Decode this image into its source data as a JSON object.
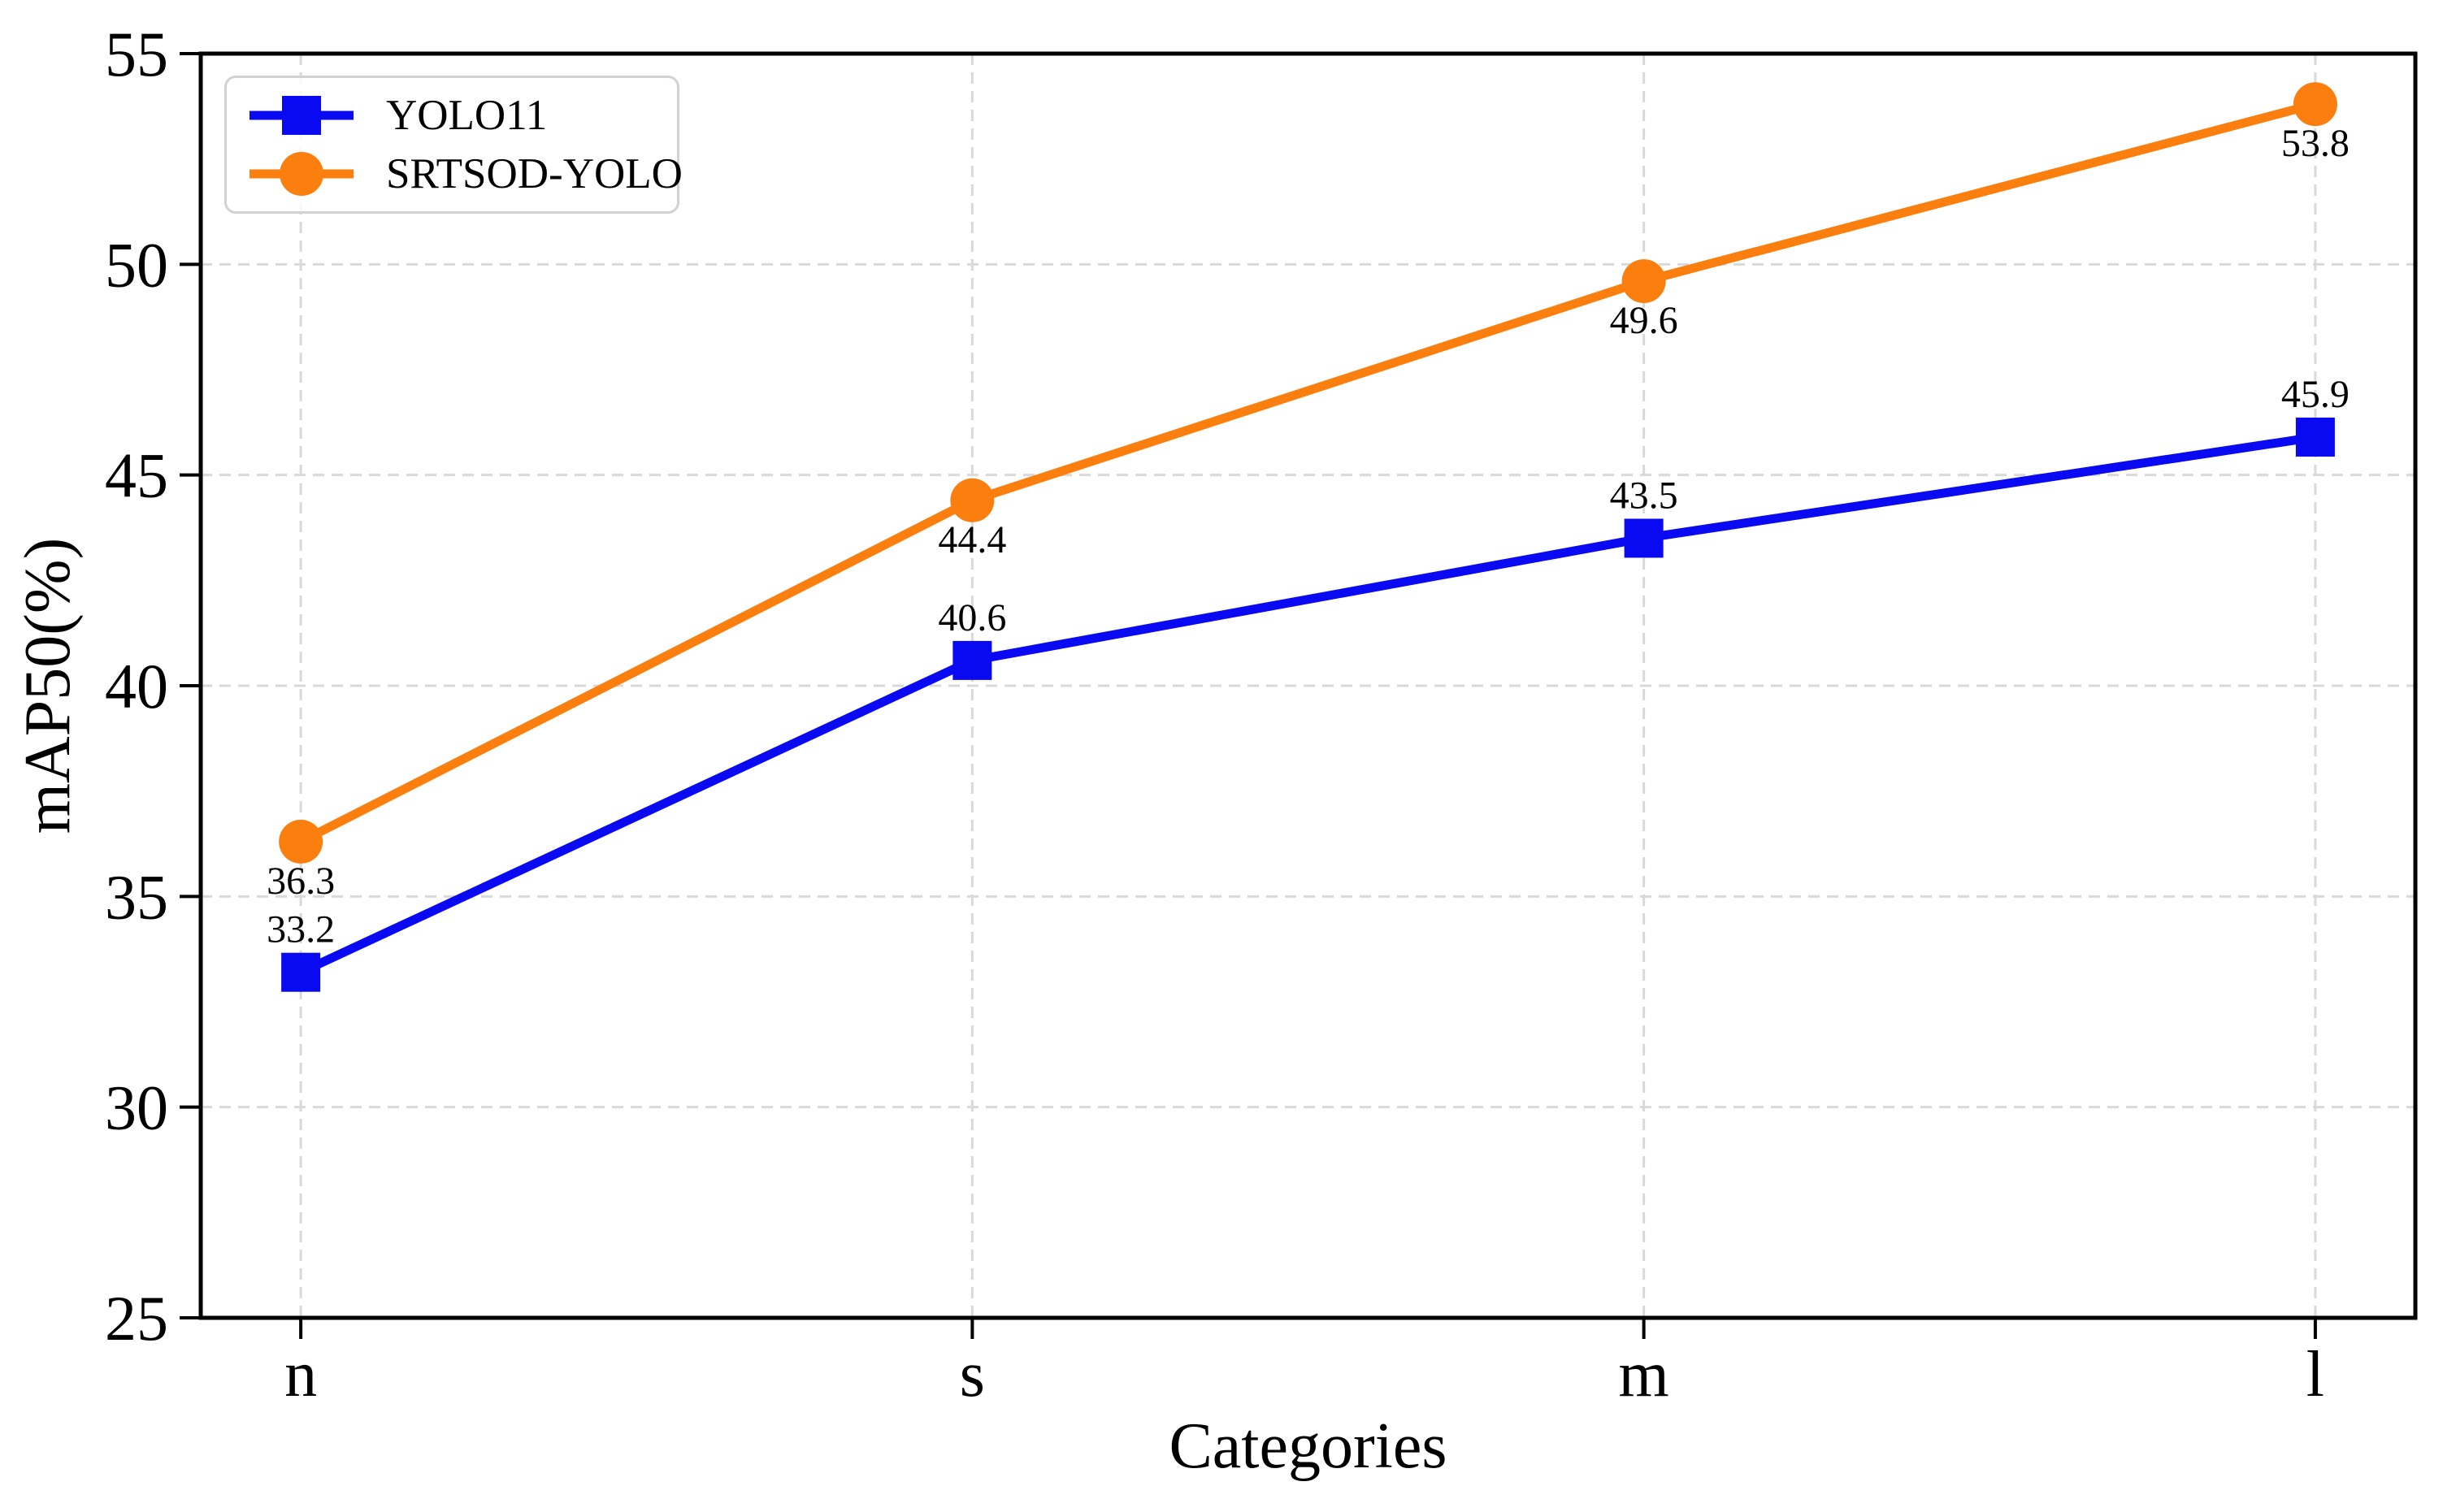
{
  "figure": {
    "background": "#ffffff"
  },
  "chart_data": {
    "type": "line",
    "title": "",
    "xlabel": "Categories",
    "ylabel": "mAP50(%)",
    "categories": [
      "n",
      "s",
      "m",
      "l"
    ],
    "y_ticks": [
      "25",
      "30",
      "35",
      "40",
      "45",
      "50",
      "55"
    ],
    "ylim": [
      25,
      55
    ],
    "grid": true,
    "grid_style": "dashed",
    "legend_position": "upper-left",
    "series": [
      {
        "name": "YOLO11",
        "marker": "square",
        "color": "#0a0af2",
        "values": [
          33.2,
          40.6,
          43.5,
          45.9
        ],
        "value_labels": [
          "33.2",
          "40.6",
          "43.5",
          "45.9"
        ],
        "label_position": "above"
      },
      {
        "name": "SRTSOD-YOLO",
        "marker": "circle",
        "color": "#fb7f0e",
        "values": [
          36.3,
          44.4,
          49.6,
          53.8
        ],
        "value_labels": [
          "36.3",
          "44.4",
          "49.6",
          "53.8"
        ],
        "label_position": "below"
      }
    ]
  },
  "colors": {
    "grid": "#d9d9d9",
    "spine": "#000000",
    "text": "#000000",
    "legend_border": "#d2d2d2"
  }
}
